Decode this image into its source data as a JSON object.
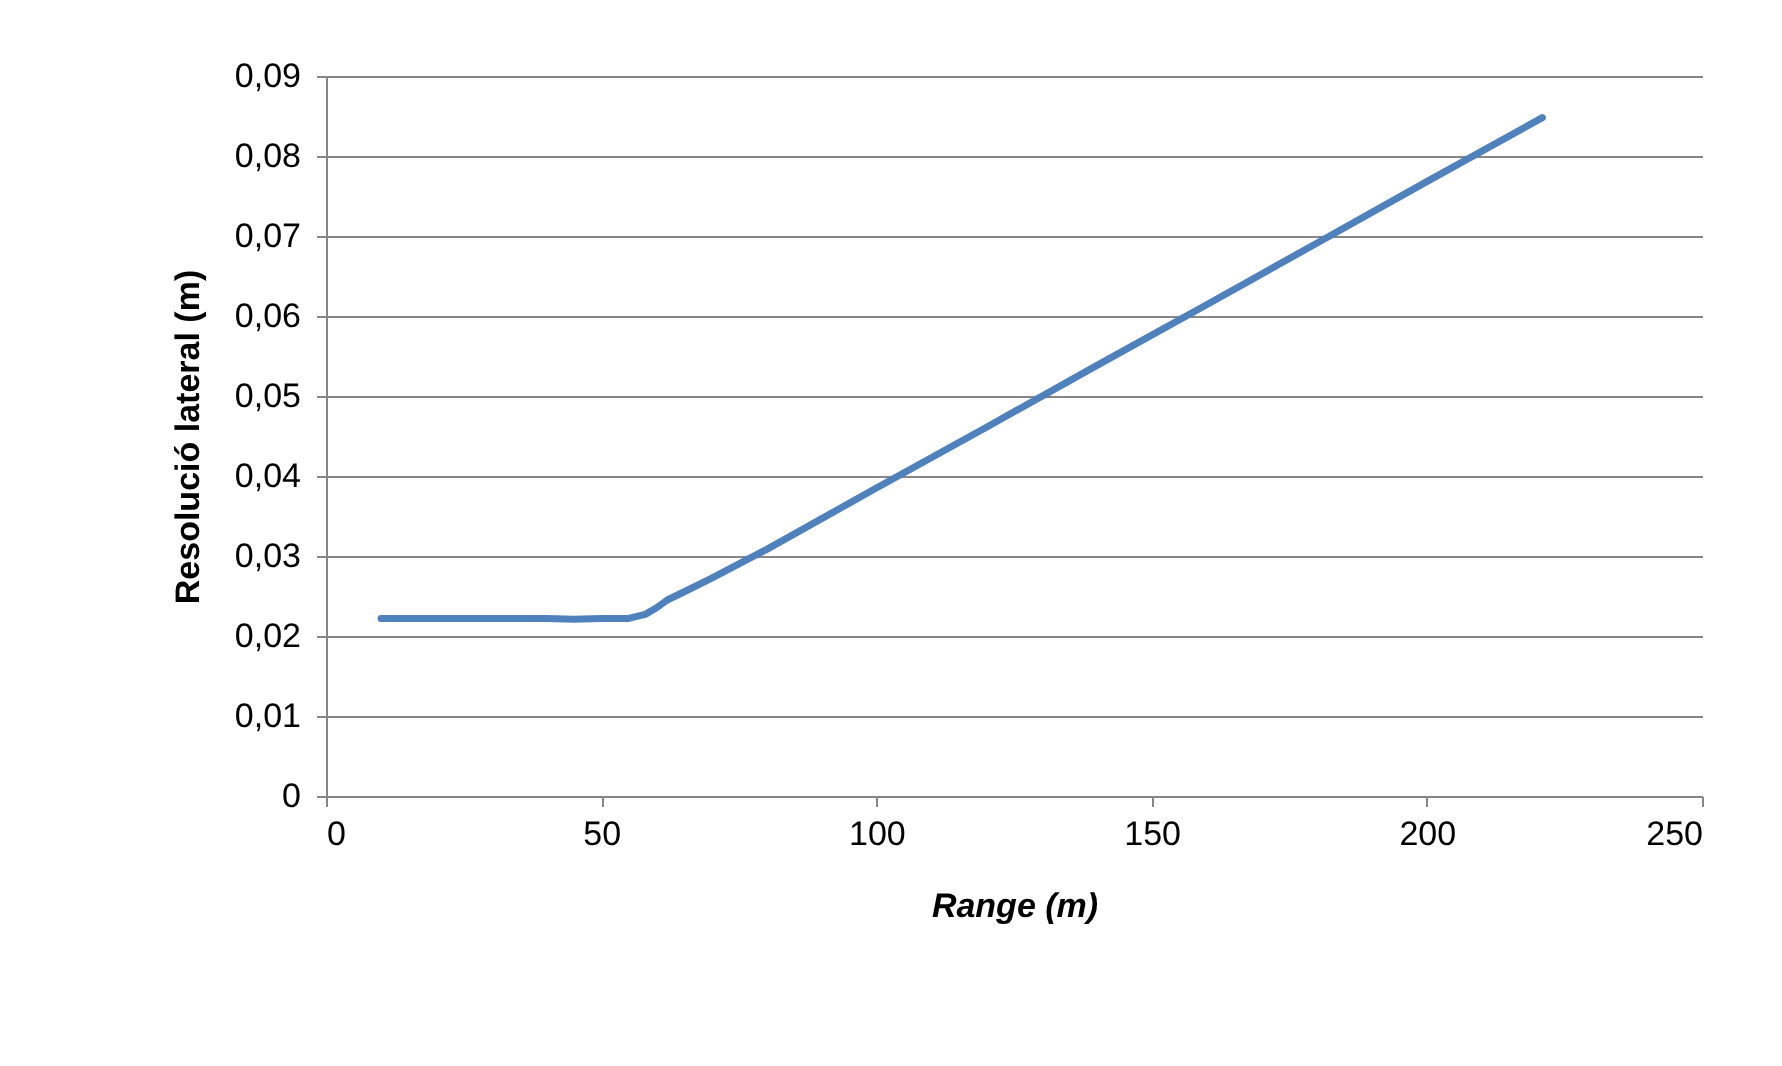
{
  "chart_data": {
    "type": "line",
    "xlabel": "Range (m)",
    "ylabel": "Resolució lateral (m)",
    "x": [
      10,
      20,
      30,
      40,
      45,
      50,
      55,
      58,
      60,
      62,
      65,
      70,
      80,
      100,
      120,
      140,
      160,
      180,
      200,
      221
    ],
    "series": [
      {
        "color": "#4f81bd",
        "values": [
          0.0222,
          0.0222,
          0.0222,
          0.0222,
          0.0221,
          0.0222,
          0.0222,
          0.0227,
          0.0235,
          0.0245,
          0.0255,
          0.0272,
          0.0308,
          0.0385,
          0.0461,
          0.0538,
          0.0614,
          0.0691,
          0.0768,
          0.0848
        ]
      }
    ],
    "xlim": [
      0,
      250
    ],
    "xticks": [
      0,
      50,
      100,
      150,
      200,
      250
    ],
    "ylim": [
      0,
      0.09
    ],
    "yticks": [
      0,
      {
        "value": 0.01,
        "label": "0,01"
      },
      {
        "value": 0.02,
        "label": "0,02"
      },
      {
        "value": 0.03,
        "label": "0,03"
      },
      {
        "value": 0.04,
        "label": "0,04"
      },
      {
        "value": 0.05,
        "label": "0,05"
      },
      {
        "value": 0.06,
        "label": "0,06"
      },
      {
        "value": 0.07,
        "label": "0,07"
      },
      {
        "value": 0.08,
        "label": "0,08"
      },
      {
        "value": 0.09,
        "label": "0,09"
      }
    ],
    "grid": "y",
    "line_style": "solid",
    "marker": "none",
    "legend": false
  }
}
